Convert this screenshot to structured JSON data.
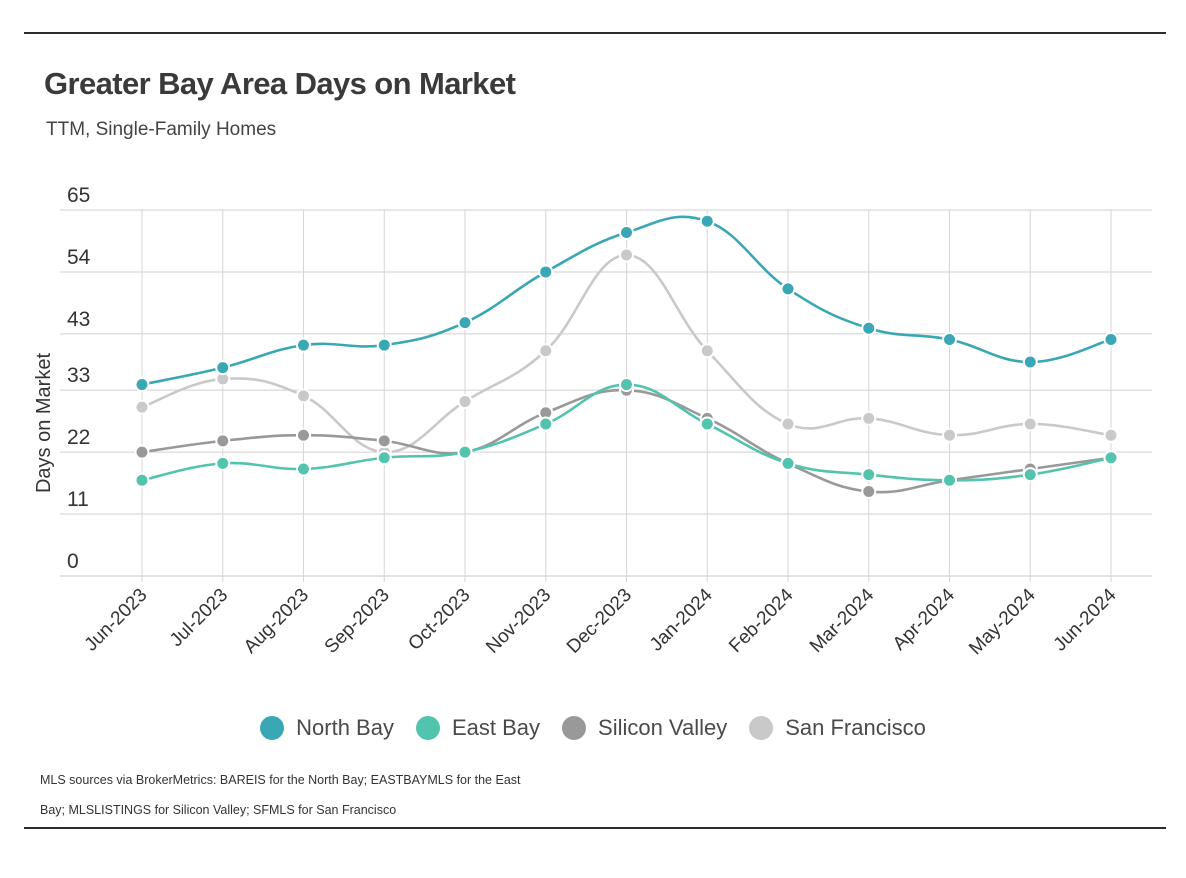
{
  "header": {
    "title": "Greater Bay Area Days on Market",
    "subtitle": "TTM, Single-Family Homes"
  },
  "footer": {
    "source_line1": "MLS sources via BrokerMetrics: BAREIS for the North Bay; EASTBAYMLS for the East",
    "source_line2": "Bay; MLSLISTINGS for Silicon Valley; SFMLS for San Francisco"
  },
  "chart_data": {
    "type": "line",
    "title": "Greater Bay Area Days on Market",
    "subtitle": "TTM, Single-Family Homes",
    "xlabel": "",
    "ylabel": "Days on Market",
    "ylim": [
      0,
      65
    ],
    "yticks": [
      0,
      11,
      22,
      33,
      43,
      54,
      65
    ],
    "grid": true,
    "legend_position": "bottom",
    "categories": [
      "Jun-2023",
      "Jul-2023",
      "Aug-2023",
      "Sep-2023",
      "Oct-2023",
      "Nov-2023",
      "Dec-2023",
      "Jan-2024",
      "Feb-2024",
      "Mar-2024",
      "Apr-2024",
      "May-2024",
      "Jun-2024"
    ],
    "series": [
      {
        "name": "North Bay",
        "color": "#3aa7b5",
        "values": [
          34,
          37,
          41,
          41,
          45,
          54,
          61,
          63,
          51,
          44,
          42,
          38,
          42
        ]
      },
      {
        "name": "East Bay",
        "color": "#52c4ae",
        "values": [
          17,
          20,
          19,
          21,
          22,
          27,
          34,
          27,
          20,
          18,
          17,
          18,
          21
        ]
      },
      {
        "name": "Silicon Valley",
        "color": "#999999",
        "values": [
          22,
          24,
          25,
          24,
          22,
          29,
          33,
          28,
          20,
          15,
          17,
          19,
          21
        ]
      },
      {
        "name": "San Francisco",
        "color": "#c9c9c9",
        "values": [
          30,
          35,
          32,
          22,
          31,
          40,
          57,
          40,
          27,
          28,
          25,
          27,
          25
        ]
      }
    ]
  }
}
